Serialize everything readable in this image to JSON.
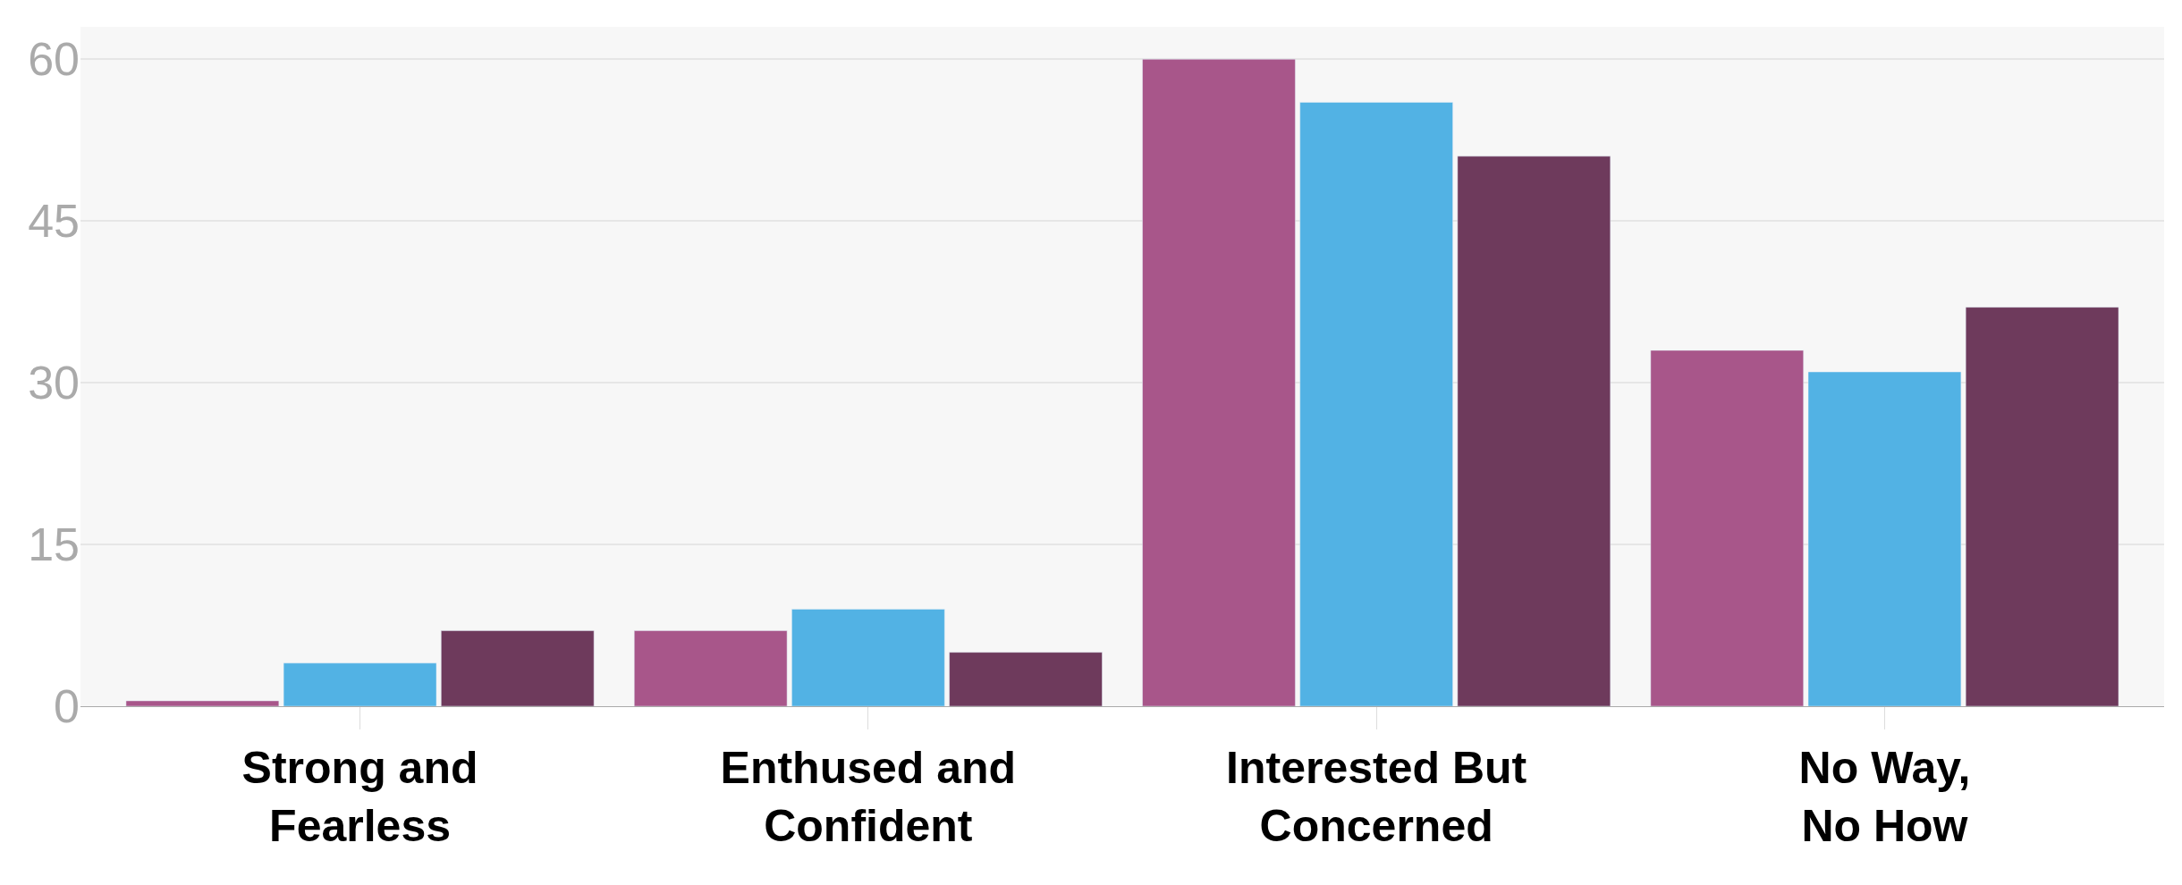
{
  "chart_data": {
    "type": "bar",
    "categories": [
      "Strong and Fearless",
      "Enthused and Confident",
      "Interested But Concerned",
      "No Way, No How"
    ],
    "series": [
      {
        "color": "#a8568a",
        "values": [
          0.5,
          7,
          60,
          33
        ]
      },
      {
        "color": "#52b2e4",
        "values": [
          4,
          9,
          56,
          31
        ]
      },
      {
        "color": "#6e3a5c",
        "values": [
          7,
          5,
          51,
          37
        ]
      }
    ],
    "ylim": [
      0,
      63
    ],
    "yticks": [
      0,
      15,
      30,
      45,
      60
    ],
    "grid": "y"
  }
}
